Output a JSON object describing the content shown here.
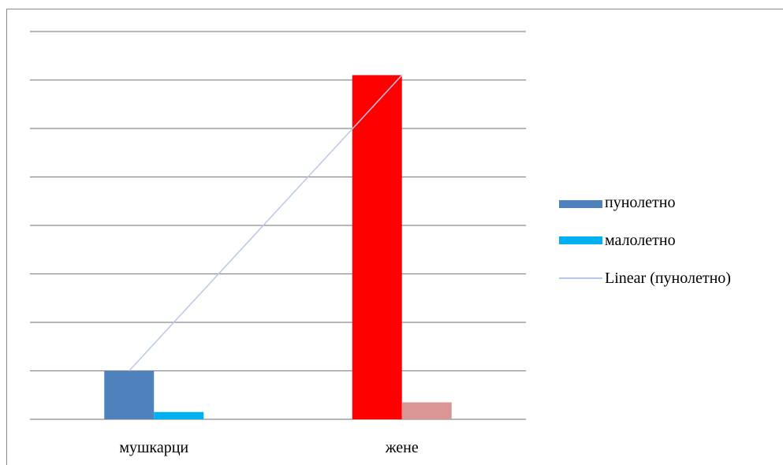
{
  "chart_data": {
    "type": "bar",
    "categories": [
      "мушкарци",
      "жене"
    ],
    "series": [
      {
        "name": "пунолетно",
        "values": [
          1,
          7.1
        ],
        "color": "#4f81bd",
        "point_colors": [
          "#4f81bd",
          "#ff0000"
        ]
      },
      {
        "name": "малолетно",
        "values": [
          0.15,
          0.35
        ],
        "color": "#00b0f0",
        "point_colors": [
          "#00b0f0",
          "#d99694"
        ]
      }
    ],
    "trendline": {
      "name": "Linear (пунолетно)",
      "series": "пунолетно",
      "color": "#b7c8e6"
    },
    "ylim": [
      0,
      8
    ],
    "grid": true,
    "legend_position": "right",
    "title": "",
    "xlabel": "",
    "ylabel": ""
  }
}
